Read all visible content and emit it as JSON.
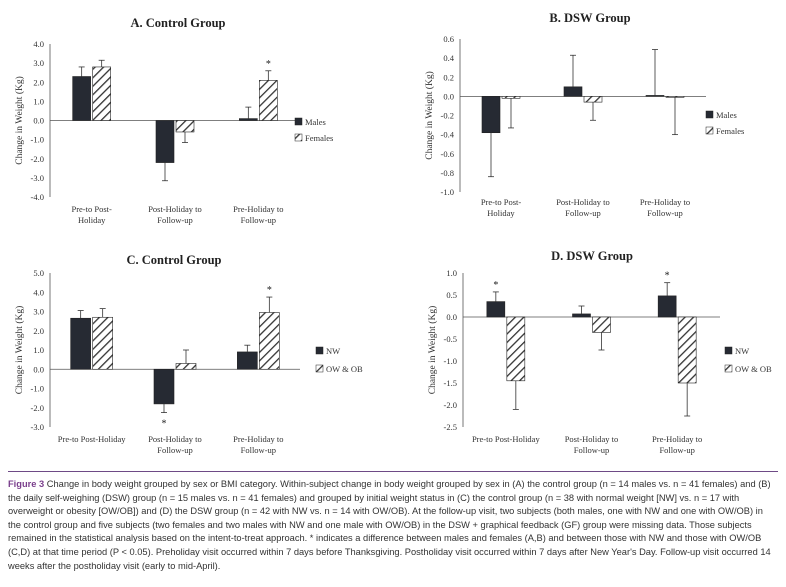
{
  "colors": {
    "dark_bar": "#262a33",
    "hatch": "#333333",
    "caption_label": "#7a3f8c",
    "rule": "#6e4a86"
  },
  "chart_data": [
    {
      "type": "bar",
      "panel": "A",
      "title": "A. Control Group",
      "ylabel": "Change in Weight (Kg)",
      "ylim": [
        -4.0,
        4.0
      ],
      "yticks": [
        "4.0",
        "3.0",
        "2.0",
        "1.0",
        "0.0",
        "-1.0",
        "-2.0",
        "-3.0",
        "-4.0"
      ],
      "categories": [
        [
          "Pre-to Post-",
          "Holiday"
        ],
        [
          "Post-Holiday to",
          "Follow-up"
        ],
        [
          "Pre-Holiday to",
          "Follow-up"
        ]
      ],
      "series": [
        {
          "name": "Males",
          "pattern": "solid",
          "values": [
            2.3,
            -2.2,
            0.1
          ],
          "errors": [
            0.5,
            0.95,
            0.6
          ]
        },
        {
          "name": "Females",
          "pattern": "hatch",
          "values": [
            2.8,
            -0.6,
            2.1
          ],
          "errors": [
            0.35,
            0.55,
            0.5
          ]
        }
      ],
      "annotations": [
        {
          "category": 2,
          "series": 1,
          "text": "*"
        }
      ],
      "legend": "right"
    },
    {
      "type": "bar",
      "panel": "B",
      "title": "B. DSW Group",
      "ylabel": "Change in Weight (Kg)",
      "ylim": [
        -1.0,
        0.6
      ],
      "yticks": [
        "0.6",
        "0.4",
        "0.2",
        "0.0",
        "-0.2",
        "-0.4",
        "-0.6",
        "-0.8",
        "-1.0"
      ],
      "categories": [
        [
          "Pre-to Post-",
          "Holiday"
        ],
        [
          "Post-Holiday to",
          "Follow-up"
        ],
        [
          "Pre-Holiday to",
          "Follow-up"
        ]
      ],
      "series": [
        {
          "name": "Males",
          "pattern": "solid",
          "values": [
            -0.38,
            0.1,
            0.01
          ],
          "errors": [
            0.46,
            0.33,
            0.48
          ]
        },
        {
          "name": "Females",
          "pattern": "hatch",
          "values": [
            -0.02,
            -0.06,
            -0.01
          ],
          "errors": [
            0.31,
            0.19,
            0.39
          ]
        }
      ],
      "annotations": [],
      "legend": "right"
    },
    {
      "type": "bar",
      "panel": "C",
      "title": "C. Control Group",
      "ylabel": "Change in Weight (Kg)",
      "ylim": [
        -3.0,
        5.0
      ],
      "yticks": [
        "5.0",
        "4.0",
        "3.0",
        "2.0",
        "1.0",
        "0.0",
        "-1.0",
        "-2.0",
        "-3.0"
      ],
      "categories": [
        [
          "Pre-to Post-Holiday"
        ],
        [
          "Post-Holiday to",
          "Follow-up"
        ],
        [
          "Pre-Holiday to",
          "Follow-up"
        ]
      ],
      "series": [
        {
          "name": "NW",
          "pattern": "solid",
          "values": [
            2.65,
            -1.8,
            0.9
          ],
          "errors": [
            0.4,
            0.45,
            0.35
          ]
        },
        {
          "name": "OW & OB",
          "pattern": "hatch",
          "values": [
            2.7,
            0.3,
            2.95
          ],
          "errors": [
            0.45,
            0.7,
            0.8
          ]
        }
      ],
      "annotations": [
        {
          "category": 1,
          "series": 0,
          "text": "*",
          "below": true
        },
        {
          "category": 2,
          "series": 1,
          "text": "*"
        }
      ],
      "legend": "right"
    },
    {
      "type": "bar",
      "panel": "D",
      "title": "D. DSW Group",
      "ylabel": "Change in Weight (Kg)",
      "ylim": [
        -2.5,
        1.0
      ],
      "yticks": [
        "1.0",
        "0.5",
        "0.0",
        "-0.5",
        "-1.0",
        "-1.5",
        "-2.0",
        "-2.5"
      ],
      "categories": [
        [
          "Pre-to Post-Holiday"
        ],
        [
          "Post-Holiday to",
          "Follow-up"
        ],
        [
          "Pre-Holiday to",
          "Follow-up"
        ]
      ],
      "series": [
        {
          "name": "NW",
          "pattern": "solid",
          "values": [
            0.35,
            0.07,
            0.48
          ],
          "errors": [
            0.22,
            0.18,
            0.3
          ]
        },
        {
          "name": "OW & OB",
          "pattern": "hatch",
          "values": [
            -1.45,
            -0.35,
            -1.5
          ],
          "errors": [
            0.65,
            0.4,
            0.75
          ]
        }
      ],
      "annotations": [
        {
          "category": 0,
          "series": 0,
          "text": "*"
        },
        {
          "category": 2,
          "series": 0,
          "text": "*"
        }
      ],
      "legend": "right"
    }
  ],
  "caption": {
    "label": "Figure 3",
    "text": "Change in body weight grouped by sex or BMI category. Within-subject change in body weight grouped by sex in (A) the control group (n = 14 males vs. n = 41 females) and (B) the daily self-weighing (DSW) group (n = 15 males vs. n = 41 females) and grouped by initial weight status in (C) the control group (n = 38 with normal weight [NW] vs. n = 17 with overweight or obesity [OW/OB]) and (D) the DSW group (n = 42 with NW vs. n = 14 with OW/OB). At the follow-up visit, two subjects (both males, one with NW and one with OW/OB) in the control group and five subjects (two females and two males with NW and one male with OW/OB) in the DSW + graphical feedback (GF) group were missing data. Those subjects remained in the statistical analysis based on the intent-to-treat approach. * indicates a difference between males and females (A,B) and between those with NW and those with OW/OB (C,D) at that time period (P < 0.05). Preholiday visit occurred within 7 days before Thanksgiving. Postholiday visit occurred within 7 days after New Year's Day. Follow-up visit occurred 14 weeks after the postholiday visit (early to mid-April)."
  }
}
